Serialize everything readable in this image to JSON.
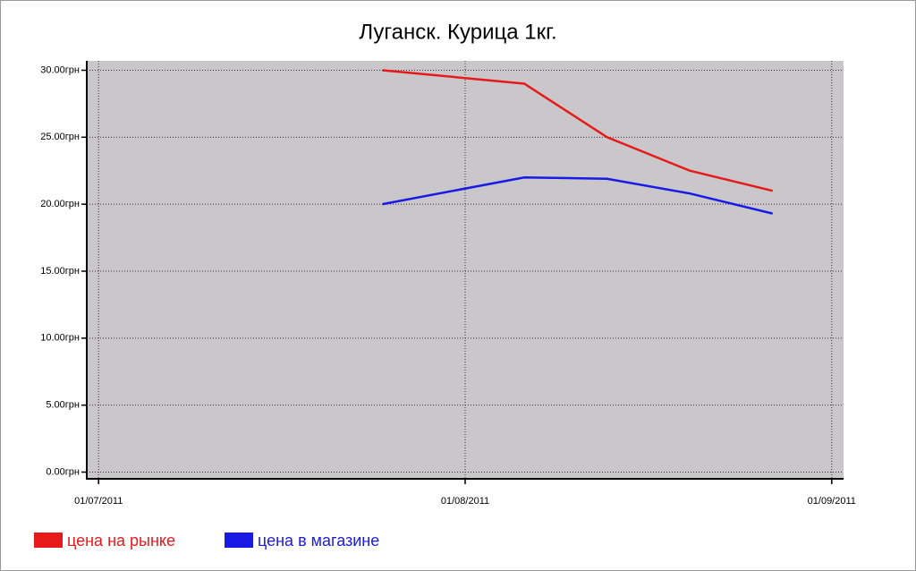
{
  "chart_data": {
    "type": "line",
    "title": "Луганск. Курица 1кг.",
    "x": [
      "2011-07-25",
      "2011-08-06",
      "2011-08-13",
      "2011-08-20",
      "2011-08-27"
    ],
    "series": [
      {
        "name": "цена на рынке",
        "color": "#e8191b",
        "values": [
          30,
          29,
          25,
          22.5,
          21
        ]
      },
      {
        "name": "цена в магазине",
        "color": "#1a1ae6",
        "values": [
          20,
          22,
          21.9,
          20.8,
          19.3
        ]
      }
    ],
    "xlim": [
      "2011-06-30",
      "2011-09-02"
    ],
    "xticks": [
      {
        "value": "2011-07-01",
        "label": "01/07/2011"
      },
      {
        "value": "2011-08-01",
        "label": "01/08/2011"
      },
      {
        "value": "2011-09-01",
        "label": "01/09/2011"
      }
    ],
    "ylim": [
      -0.5,
      30.7
    ],
    "yticks": [
      {
        "value": 0,
        "label": "0.00грн"
      },
      {
        "value": 5,
        "label": "5.00грн"
      },
      {
        "value": 10,
        "label": "10.00грн"
      },
      {
        "value": 15,
        "label": "15.00грн"
      },
      {
        "value": 20,
        "label": "20.00грн"
      },
      {
        "value": 25,
        "label": "25.00грн"
      },
      {
        "value": 30,
        "label": "30.00грн"
      }
    ],
    "grid": true,
    "legend": "bottom-left",
    "background": "#c9c7ca"
  }
}
